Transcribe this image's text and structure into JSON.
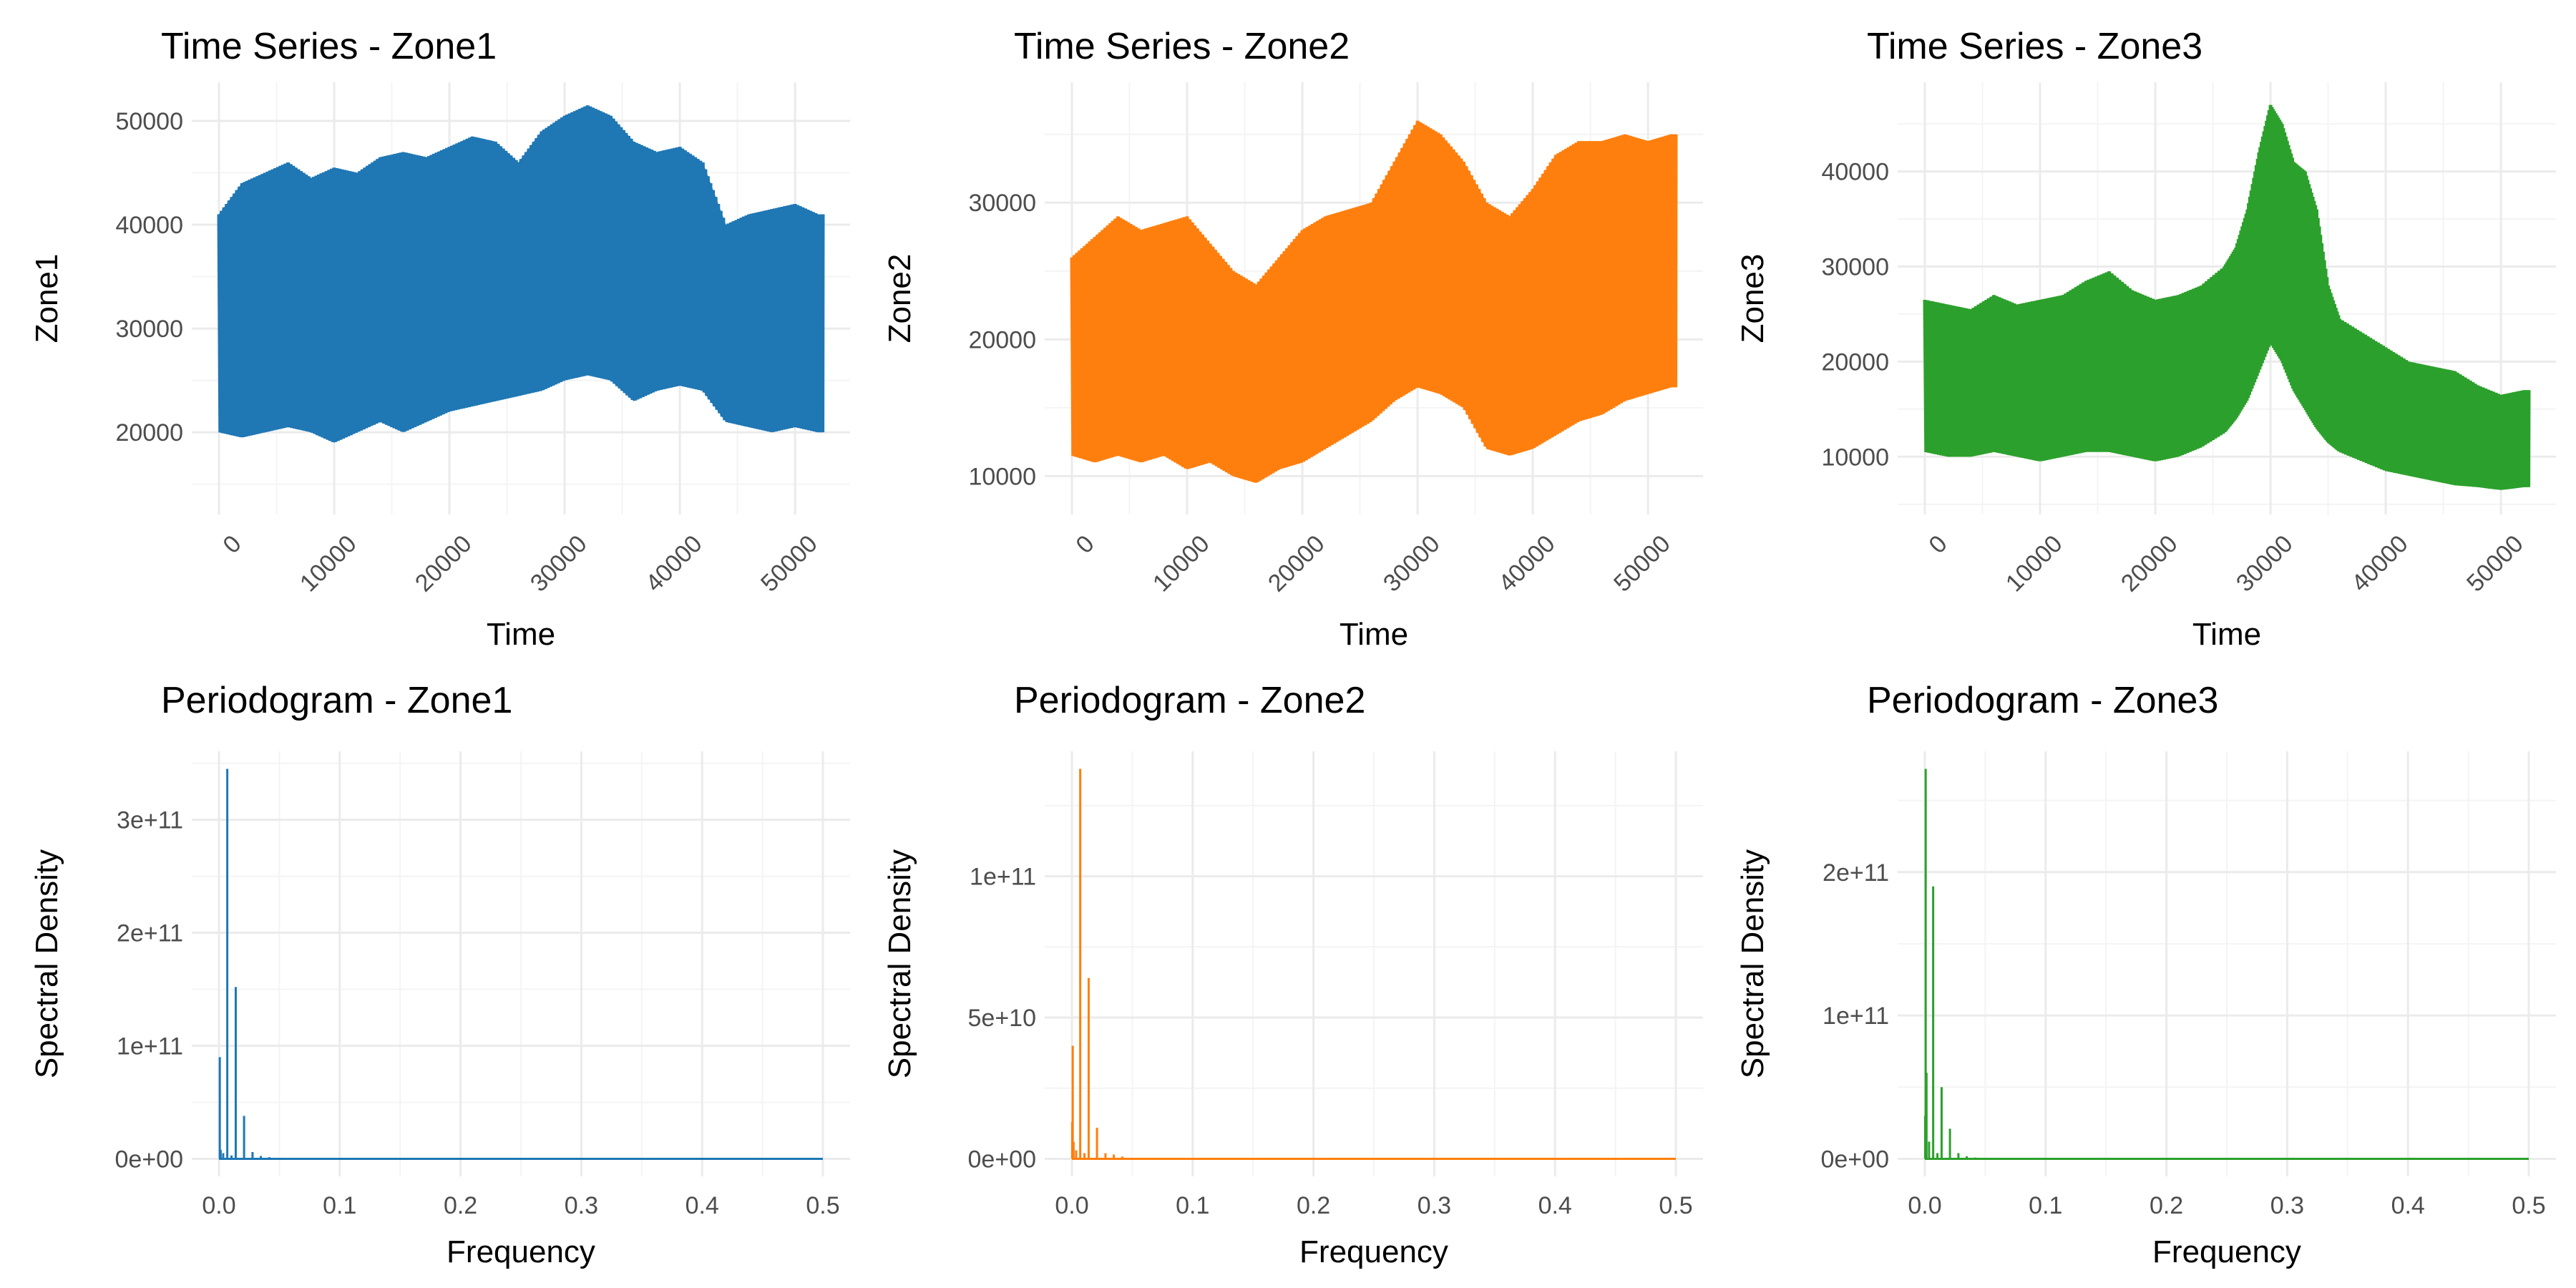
{
  "chart_data": [
    {
      "type": "line",
      "title": "Time Series - Zone1",
      "xlabel": "Time",
      "ylabel": "Zone1",
      "color": "#1f77b4",
      "xlim": [
        0,
        52416
      ],
      "ylim": [
        13800,
        52000
      ],
      "x_ticks": [
        0,
        10000,
        20000,
        30000,
        40000,
        50000
      ],
      "x_tick_labels": [
        "0",
        "10000",
        "20000",
        "30000",
        "40000",
        "50000"
      ],
      "y_ticks": [
        20000,
        30000,
        40000,
        50000
      ],
      "y_tick_labels": [
        "20000",
        "30000",
        "40000",
        "50000"
      ],
      "series": [
        {
          "x": [
            0,
            2000,
            4000,
            6000,
            8000,
            10000,
            12000,
            14000,
            16000,
            18000,
            20000,
            22000,
            24000,
            26000,
            28000,
            30000,
            32000,
            34000,
            36000,
            38000,
            40000,
            42000,
            44000,
            46000,
            48000,
            50000,
            52000
          ],
          "upper": [
            41000,
            44000,
            45000,
            46000,
            44500,
            45500,
            45000,
            46500,
            47000,
            46500,
            47500,
            48500,
            48000,
            46000,
            49000,
            50500,
            51500,
            50500,
            48000,
            47000,
            47500,
            46000,
            40000,
            41000,
            41500,
            42000,
            41000
          ],
          "lower": [
            20000,
            19500,
            20000,
            20500,
            20000,
            19000,
            20000,
            21000,
            20000,
            21000,
            22000,
            22500,
            23000,
            23500,
            24000,
            25000,
            25500,
            25000,
            23000,
            24000,
            24500,
            24000,
            21000,
            20500,
            20000,
            20500,
            20000
          ]
        }
      ]
    },
    {
      "type": "line",
      "title": "Time Series - Zone2",
      "xlabel": "Time",
      "ylabel": "Zone2",
      "color": "#ff7f0e",
      "xlim": [
        0,
        52416
      ],
      "ylim": [
        8500,
        37500
      ],
      "x_ticks": [
        0,
        10000,
        20000,
        30000,
        40000,
        50000
      ],
      "x_tick_labels": [
        "0",
        "10000",
        "20000",
        "30000",
        "40000",
        "50000"
      ],
      "y_ticks": [
        10000,
        20000,
        30000
      ],
      "y_tick_labels": [
        "10000",
        "20000",
        "30000"
      ],
      "series": [
        {
          "x": [
            0,
            2000,
            4000,
            6000,
            8000,
            10000,
            12000,
            14000,
            16000,
            18000,
            20000,
            22000,
            24000,
            26000,
            28000,
            30000,
            32000,
            34000,
            36000,
            38000,
            40000,
            42000,
            44000,
            46000,
            48000,
            50000,
            52000
          ],
          "upper": [
            26000,
            27500,
            29000,
            28000,
            28500,
            29000,
            27000,
            25000,
            24000,
            26000,
            28000,
            29000,
            29500,
            30000,
            33000,
            36000,
            35000,
            33000,
            30000,
            29000,
            31000,
            33500,
            34500,
            34500,
            35000,
            34500,
            35000
          ],
          "lower": [
            11500,
            11000,
            11500,
            11000,
            11500,
            10500,
            11000,
            10000,
            9500,
            10500,
            11000,
            12000,
            13000,
            14000,
            15500,
            16500,
            16000,
            15000,
            12000,
            11500,
            12000,
            13000,
            14000,
            14500,
            15500,
            16000,
            16500
          ]
        }
      ]
    },
    {
      "type": "line",
      "title": "Time Series - Zone3",
      "xlabel": "Time",
      "ylabel": "Zone3",
      "color": "#2ca02c",
      "xlim": [
        0,
        52416
      ],
      "ylim": [
        5800,
        47500
      ],
      "x_ticks": [
        0,
        10000,
        20000,
        30000,
        40000,
        50000
      ],
      "x_tick_labels": [
        "0",
        "10000",
        "20000",
        "30000",
        "40000",
        "50000"
      ],
      "y_ticks": [
        10000,
        20000,
        30000,
        40000
      ],
      "y_tick_labels": [
        "10000",
        "20000",
        "30000",
        "40000"
      ],
      "series": [
        {
          "x": [
            0,
            2000,
            4000,
            6000,
            8000,
            10000,
            12000,
            14000,
            16000,
            18000,
            20000,
            22000,
            24000,
            26000,
            27000,
            28000,
            29000,
            30000,
            31000,
            32000,
            33000,
            34000,
            35000,
            36000,
            38000,
            40000,
            42000,
            44000,
            46000,
            48000,
            50000,
            52000
          ],
          "upper": [
            26500,
            26000,
            25500,
            27000,
            26000,
            26500,
            27000,
            28500,
            29500,
            27500,
            26500,
            27000,
            28000,
            30000,
            32000,
            36000,
            42000,
            47000,
            45000,
            41000,
            40000,
            36000,
            28000,
            24500,
            23000,
            21500,
            20000,
            19500,
            19000,
            17500,
            16500,
            17000
          ],
          "lower": [
            10500,
            10000,
            10000,
            10500,
            10000,
            9500,
            10000,
            10500,
            10500,
            10000,
            9500,
            10000,
            11000,
            12500,
            14000,
            16000,
            19000,
            22000,
            20000,
            17000,
            15000,
            13000,
            11500,
            10500,
            9500,
            8500,
            8000,
            7500,
            7000,
            6800,
            6500,
            6800
          ]
        }
      ]
    },
    {
      "type": "line",
      "title": "Periodogram - Zone1",
      "xlabel": "Frequency",
      "ylabel": "Spectral Density",
      "color": "#1f77b4",
      "xlim": [
        0,
        0.5
      ],
      "ylim": [
        0,
        345000000000
      ],
      "x_ticks": [
        0,
        0.1,
        0.2,
        0.3,
        0.4,
        0.5
      ],
      "x_tick_labels": [
        "0.0",
        "0.1",
        "0.2",
        "0.3",
        "0.4",
        "0.5"
      ],
      "y_ticks": [
        0,
        100000000000,
        200000000000,
        300000000000
      ],
      "y_tick_labels": [
        "0e+00",
        "1e+11",
        "2e+11",
        "3e+11"
      ],
      "series": [
        {
          "x": [
            0.0007,
            0.0014,
            0.0035,
            0.0069,
            0.0104,
            0.0139,
            0.0208,
            0.0278,
            0.0347,
            0.0417,
            0.05
          ],
          "values": [
            90000000000,
            8000000000,
            5000000000,
            345000000000,
            3000000000,
            152000000000,
            38000000000,
            6000000000,
            2500000000,
            1500000000,
            800000000
          ]
        }
      ]
    },
    {
      "type": "line",
      "title": "Periodogram - Zone2",
      "xlabel": "Frequency",
      "ylabel": "Spectral Density",
      "color": "#ff7f0e",
      "xlim": [
        0,
        0.5
      ],
      "ylim": [
        0,
        138000000000
      ],
      "x_ticks": [
        0,
        0.1,
        0.2,
        0.3,
        0.4,
        0.5
      ],
      "x_tick_labels": [
        "0.0",
        "0.1",
        "0.2",
        "0.3",
        "0.4",
        "0.5"
      ],
      "y_ticks": [
        0,
        50000000000,
        100000000000
      ],
      "y_tick_labels": [
        "0e+00",
        "5e+10",
        "1e+11"
      ],
      "series": [
        {
          "x": [
            0.0003,
            0.0007,
            0.0014,
            0.0035,
            0.0069,
            0.0104,
            0.0139,
            0.0208,
            0.0278,
            0.0347,
            0.0417
          ],
          "values": [
            13000000000,
            40000000000,
            6000000000,
            3000000000,
            138000000000,
            2000000000,
            64000000000,
            11000000000,
            2000000000,
            1500000000,
            800000000
          ]
        }
      ]
    },
    {
      "type": "line",
      "title": "Periodogram - Zone3",
      "xlabel": "Frequency",
      "ylabel": "Spectral Density",
      "color": "#2ca02c",
      "xlim": [
        0,
        0.5
      ],
      "ylim": [
        0,
        272000000000
      ],
      "x_ticks": [
        0,
        0.1,
        0.2,
        0.3,
        0.4,
        0.5
      ],
      "x_tick_labels": [
        "0.0",
        "0.1",
        "0.2",
        "0.3",
        "0.4",
        "0.5"
      ],
      "y_ticks": [
        0,
        100000000000,
        200000000000
      ],
      "y_tick_labels": [
        "0e+00",
        "1e+11",
        "2e+11"
      ],
      "series": [
        {
          "x": [
            0.0003,
            0.0007,
            0.0014,
            0.0035,
            0.0069,
            0.0104,
            0.0139,
            0.0208,
            0.0278,
            0.0347,
            0.0417
          ],
          "values": [
            30000000000,
            272000000000,
            60000000000,
            12000000000,
            190000000000,
            4000000000,
            50000000000,
            21000000000,
            4000000000,
            1800000000,
            900000000
          ]
        }
      ]
    }
  ]
}
